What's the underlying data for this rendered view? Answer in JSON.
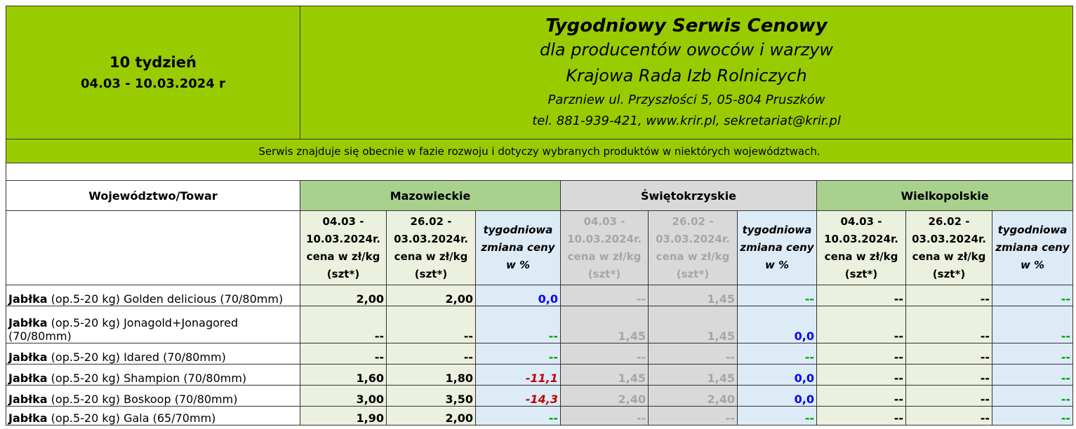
{
  "header": {
    "week": "10 tydzień",
    "dates": "04.03 - 10.03.2024 r",
    "title": "Tygodniowy Serwis Cenowy",
    "lines": [
      "dla producentów owoców i warzyw",
      "Krajowa Rada Izb Rolniczych",
      "Parzniew ul. Przyszłości 5, 05-804 Pruszków",
      "tel. 881-939-421, www.krir.pl, sekretariat@krir.pl"
    ],
    "notice": "Serwis znajduje się obecnie w fazie rozwoju i dotyczy wybranych produktów w niektórych województwach."
  },
  "table": {
    "corner": "Województwo/Towar",
    "regions": [
      "Mazowieckie",
      "Świętokrzyskie",
      "Wielkopolskie"
    ],
    "subheaders": [
      [
        "04.03 - 10.03.2024r. cena w zł/kg (szt*)",
        "26.02 - 03.03.2024r. cena w zł/kg (szt*)",
        "tygodniowa zmiana ceny w %"
      ],
      [
        "04.03 - 10.03.2024r. cena w zł/kg (szt*)",
        "26.02 - 03.03.2024r. cena w zł/kg (szt*)",
        "tygodniowa zmiana ceny w %"
      ],
      [
        "04.03 - 10.03.2024r. cena w zł/kg (szt*)",
        "26.02 - 03.03.2024r. cena w zł/kg (szt*)",
        "tygodniowa zmiana ceny w %"
      ]
    ],
    "rows": [
      {
        "bold": "Jabłka",
        "rest": " (op.5-20 kg) Golden delicious (70/80mm)",
        "cells": [
          "2,00",
          "2,00",
          "0,0",
          "--",
          "1,45",
          "--",
          "--",
          "--",
          "--"
        ]
      },
      {
        "bold": "Jabłka",
        "rest": " (op.5-20 kg) Jonagold+Jonagored (70/80mm)",
        "cells": [
          "--",
          "--",
          "--",
          "1,45",
          "1,45",
          "0,0",
          "--",
          "--",
          "--"
        ]
      },
      {
        "bold": "Jabłka",
        "rest": " (op.5-20 kg) Idared (70/80mm)",
        "cells": [
          "--",
          "--",
          "--",
          "--",
          "--",
          "--",
          "--",
          "--",
          "--"
        ]
      },
      {
        "bold": "Jabłka",
        "rest": " (op.5-20 kg) Shampion (70/80mm)",
        "cells": [
          "1,60",
          "1,80",
          "-11,1",
          "1,45",
          "1,45",
          "0,0",
          "--",
          "--",
          "--"
        ]
      },
      {
        "bold": "Jabłka",
        "rest": " (op.5-20 kg) Boskoop (70/80mm)",
        "cells": [
          "3,00",
          "3,50",
          "-14,3",
          "2,40",
          "2,40",
          "0,0",
          "--",
          "--",
          "--"
        ]
      },
      {
        "bold": "Jabłka",
        "rest": " (op.5-20 kg) Gala (65/70mm)",
        "cells": [
          "1,90",
          "2,00",
          "--",
          "--",
          "--",
          "--",
          "--",
          "--",
          "--"
        ]
      }
    ]
  }
}
